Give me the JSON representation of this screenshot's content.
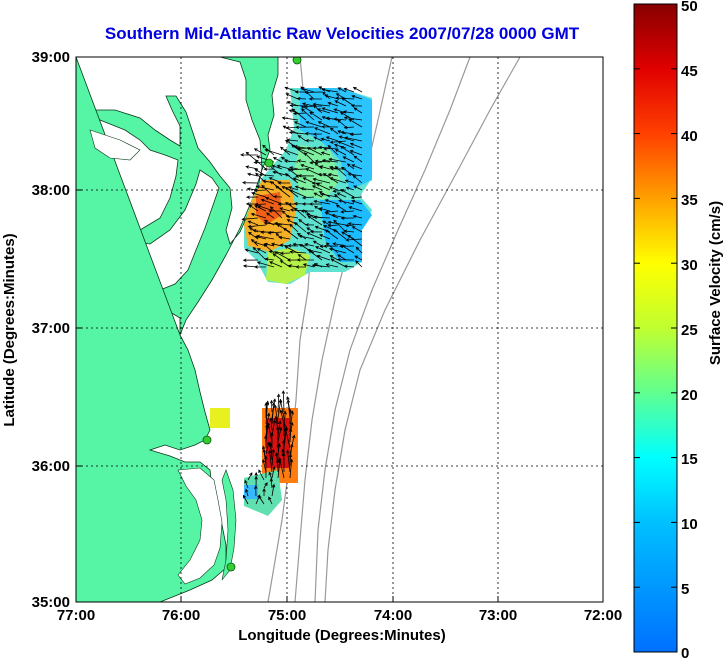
{
  "title": "Southern Mid-Atlantic Raw Velocities 2007/07/28 0000 GMT",
  "x_axis": {
    "label": "Longitude (Degrees:Minutes)",
    "ticks": [
      "77:00",
      "76:00",
      "75:00",
      "74:00",
      "73:00",
      "72:00"
    ]
  },
  "y_axis": {
    "label": "Latitude (Degrees:Minutes)",
    "ticks": [
      "39:00",
      "38:00",
      "37:00",
      "36:00",
      "35:00"
    ]
  },
  "colorbar": {
    "label": "Surface Velocity (cm/s)",
    "ticks": [
      "50",
      "45",
      "40",
      "35",
      "30",
      "25",
      "20",
      "15",
      "10",
      "5",
      "0"
    ],
    "min": 0,
    "max": 50
  },
  "colors": {
    "land": "#55f5a5",
    "title": "#0000e0",
    "bathymetry": "#999999"
  },
  "map": {
    "lon_range": [
      -77,
      -72
    ],
    "lat_range": [
      35,
      39
    ],
    "grid": true
  }
}
